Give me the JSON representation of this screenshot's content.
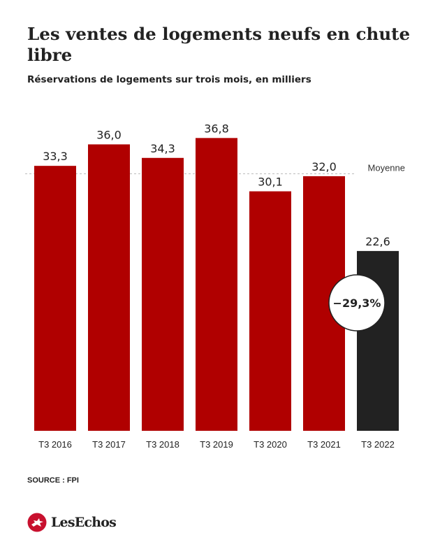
{
  "header": {
    "title": "Les ventes de logements neufs en chute libre",
    "subtitle": "Réservations de logements sur trois mois, en milliers"
  },
  "chart_data": {
    "type": "bar",
    "categories": [
      "T3 2016",
      "T3 2017",
      "T3 2018",
      "T3 2019",
      "T3 2020",
      "T3 2021",
      "T3 2022"
    ],
    "values": [
      33.3,
      36.0,
      34.3,
      36.8,
      30.1,
      32.0,
      22.6
    ],
    "value_labels": [
      "33,3",
      "36,0",
      "34,3",
      "36,8",
      "30,1",
      "32,0",
      "22,6"
    ],
    "ylim": [
      0,
      38.5
    ],
    "grid": false,
    "reference_line": {
      "label": "Moyenne",
      "value": 32.3
    },
    "annotation": {
      "text": "−29,3%",
      "category": "T3 2022"
    },
    "colors": {
      "bar": "#b00000",
      "highlight_bar": "#222222",
      "text": "#222222",
      "reference_line": "#bbbbbb"
    },
    "highlight_index": 6
  },
  "footer": {
    "source": "SOURCE : FPI",
    "brand": "LesEchos",
    "brand_color": "#c8102e"
  }
}
